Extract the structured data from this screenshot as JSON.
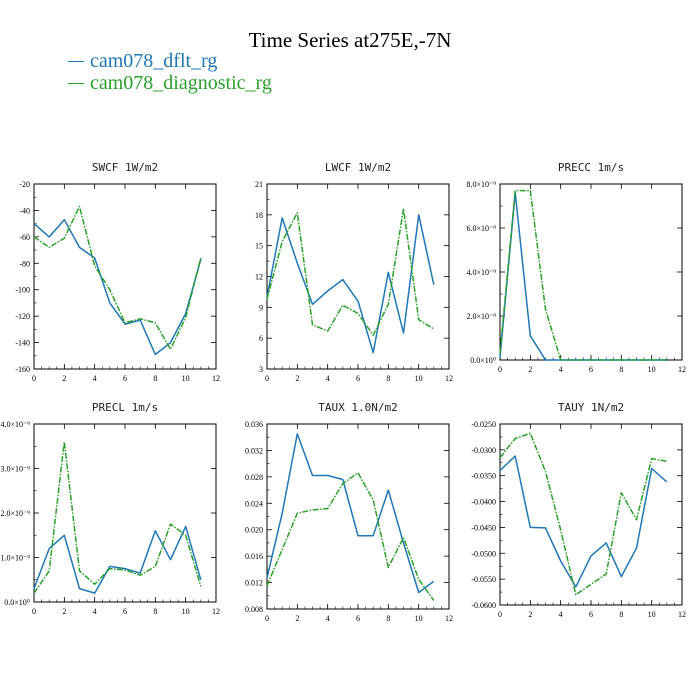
{
  "title": "Time Series at275E,-7N",
  "legend": [
    {
      "label": "cam078_dflt_rg",
      "color": "#1f77b4"
    },
    {
      "label": "cam078_diagnostic_rg",
      "color": "#2ca02c"
    }
  ],
  "chart_data": [
    {
      "type": "line",
      "title": "SWCF   1W/m2",
      "x": [
        0,
        1,
        2,
        3,
        4,
        5,
        6,
        7,
        8,
        9,
        10,
        11
      ],
      "xlim": [
        0,
        12
      ],
      "xticks": [
        "0",
        "2",
        "4",
        "6",
        "8",
        "10",
        "12"
      ],
      "ylim": [
        -160,
        -20
      ],
      "yticks": [
        "-20",
        "-40",
        "-60",
        "-80",
        "-100",
        "-120",
        "-140",
        "-160"
      ],
      "series": [
        {
          "values": [
            -50,
            -60,
            -47,
            -68,
            -76,
            -110,
            -126,
            -123,
            -149,
            -140,
            -118,
            -77
          ]
        },
        {
          "values": [
            -60,
            -68,
            -61,
            -37,
            -82,
            -100,
            -125,
            -122,
            -125,
            -145,
            -121,
            -76
          ]
        }
      ]
    },
    {
      "type": "line",
      "title": "LWCF   1W/m2",
      "x": [
        0,
        1,
        2,
        3,
        4,
        5,
        6,
        7,
        8,
        9,
        10,
        11
      ],
      "xlim": [
        0,
        12
      ],
      "xticks": [
        "0",
        "2",
        "4",
        "6",
        "8",
        "10",
        "12"
      ],
      "ylim": [
        3,
        21
      ],
      "yticks": [
        "21",
        "18",
        "15",
        "12",
        "9",
        "6",
        "3"
      ],
      "series": [
        {
          "values": [
            10,
            17.7,
            13.3,
            9.3,
            10.6,
            11.7,
            9.6,
            4.6,
            12.4,
            6.5,
            18,
            11.2
          ]
        },
        {
          "values": [
            9.8,
            15.4,
            18.2,
            7.3,
            6.7,
            9.2,
            8.4,
            6.3,
            9.3,
            18.6,
            7.8,
            6.9
          ]
        }
      ]
    },
    {
      "type": "line",
      "title": "PRECC   1m/s",
      "x": [
        0,
        1,
        2,
        3,
        4,
        5,
        6,
        7,
        8,
        9,
        10,
        11
      ],
      "xlim": [
        0,
        12
      ],
      "xticks": [
        "0",
        "2",
        "4",
        "6",
        "8",
        "10",
        "12"
      ],
      "ylim": [
        0,
        8
      ],
      "yticks": [
        "8.0×10⁻⁹",
        "6.0×10⁻⁹",
        "4.0×10⁻⁹",
        "2.0×10⁻⁹",
        "0.0×10⁰"
      ],
      "series": [
        {
          "values": [
            0.1,
            7.6,
            1.1,
            0,
            0,
            0,
            0,
            0,
            0,
            0,
            0,
            0
          ]
        },
        {
          "values": [
            0.3,
            7.7,
            7.7,
            2.3,
            0,
            0,
            0,
            0,
            0,
            0,
            0,
            0
          ]
        }
      ]
    },
    {
      "type": "line",
      "title": "PRECL   1m/s",
      "x": [
        0,
        1,
        2,
        3,
        4,
        5,
        6,
        7,
        8,
        9,
        10,
        11
      ],
      "xlim": [
        0,
        12
      ],
      "xticks": [
        "0",
        "2",
        "4",
        "6",
        "8",
        "10",
        "12"
      ],
      "ylim": [
        0,
        4
      ],
      "yticks": [
        "4.0×10⁻⁹",
        "3.0×10⁻⁹",
        "2.0×10⁻⁹",
        "1.0×10⁻⁹",
        "0.0×10⁰"
      ],
      "series": [
        {
          "values": [
            0.3,
            1.2,
            1.5,
            0.3,
            0.2,
            0.8,
            0.75,
            0.65,
            1.6,
            0.95,
            1.7,
            0.5
          ]
        },
        {
          "values": [
            0.2,
            0.7,
            3.6,
            0.7,
            0.4,
            0.75,
            0.72,
            0.6,
            0.8,
            1.75,
            1.5,
            0.35
          ]
        }
      ]
    },
    {
      "type": "line",
      "title": "TAUX   1.0N/m2",
      "x": [
        0,
        1,
        2,
        3,
        4,
        5,
        6,
        7,
        8,
        9,
        10,
        11
      ],
      "xlim": [
        0,
        12
      ],
      "xticks": [
        "0",
        "2",
        "4",
        "6",
        "8",
        "10",
        "12"
      ],
      "ylim": [
        0.008,
        0.036
      ],
      "yticks": [
        "0.036",
        "0.032",
        "0.028",
        "0.024",
        "0.020",
        "0.016",
        "0.012",
        "0.008"
      ],
      "series": [
        {
          "values": [
            0.0127,
            0.0225,
            0.0345,
            0.0282,
            0.0282,
            0.0276,
            0.0191,
            0.0191,
            0.026,
            0.018,
            0.0105,
            0.0122
          ]
        },
        {
          "values": [
            0.0115,
            0.017,
            0.0225,
            0.023,
            0.0232,
            0.027,
            0.0286,
            0.0245,
            0.0143,
            0.0188,
            0.0125,
            0.0093
          ]
        }
      ]
    },
    {
      "type": "line",
      "title": "TAUY   1N/m2",
      "x": [
        0,
        1,
        2,
        3,
        4,
        5,
        6,
        7,
        8,
        9,
        10,
        11
      ],
      "xlim": [
        0,
        12
      ],
      "xticks": [
        "0",
        "2",
        "4",
        "6",
        "8",
        "10",
        "12"
      ],
      "ylim": [
        -0.06,
        -0.025
      ],
      "yticks": [
        "-0.0250",
        "-0.0300",
        "-0.0350",
        "-0.0400",
        "-0.0450",
        "-0.0500",
        "-0.0550",
        "-0.0600"
      ],
      "series": [
        {
          "values": [
            -0.034,
            -0.0312,
            -0.045,
            -0.0451,
            -0.0515,
            -0.0565,
            -0.0505,
            -0.048,
            -0.0545,
            -0.049,
            -0.0336,
            -0.0362
          ]
        },
        {
          "values": [
            -0.0315,
            -0.0278,
            -0.0268,
            -0.0342,
            -0.0455,
            -0.058,
            -0.056,
            -0.054,
            -0.0383,
            -0.0435,
            -0.0317,
            -0.0322
          ]
        }
      ]
    }
  ]
}
